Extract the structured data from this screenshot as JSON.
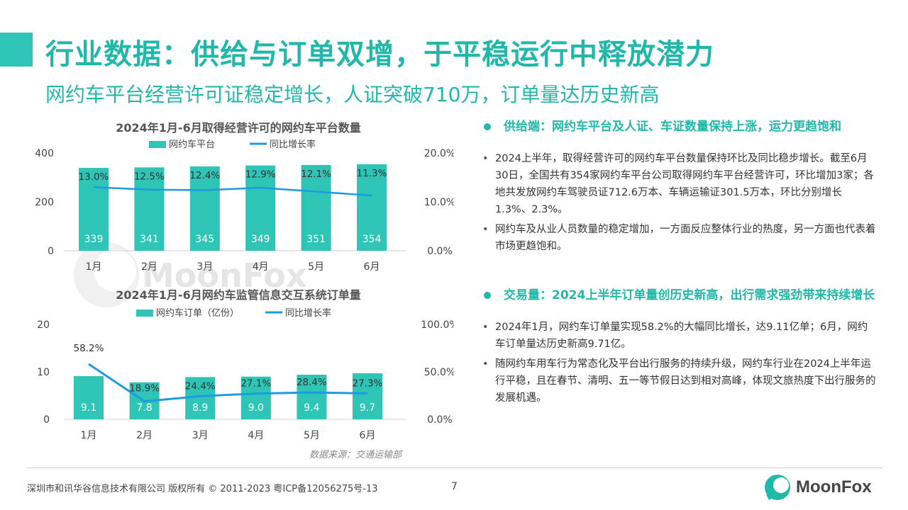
{
  "header": {
    "title": "行业数据：供给与订单双增，于平稳运行中释放潜力",
    "subtitle": "网约车平台经营许可证稳定增长，人证突破710万，订单量达历史新高"
  },
  "colors": {
    "teal": "#2ec4b6",
    "teal_dark": "#21b8aa",
    "line_blue": "#1e9be0"
  },
  "watermark": "MoonFox",
  "chart_data": [
    {
      "type": "bar",
      "title": "2024年1月-6月取得经营许可的网约车平台数量",
      "categories": [
        "1月",
        "2月",
        "3月",
        "4月",
        "5月",
        "6月"
      ],
      "series": [
        {
          "name": "网约车平台",
          "type": "bar",
          "axis": "left",
          "values": [
            339,
            341,
            345,
            349,
            351,
            354
          ],
          "labels": [
            "339",
            "341",
            "345",
            "349",
            "351",
            "354"
          ]
        },
        {
          "name": "同比增长率",
          "type": "line",
          "axis": "right",
          "values": [
            13.0,
            12.5,
            12.4,
            12.9,
            12.1,
            11.3
          ],
          "labels": [
            "13.0%",
            "12.5%",
            "12.4%",
            "12.9%",
            "12.1%",
            "11.3%"
          ]
        }
      ],
      "ylim": [
        0,
        400
      ],
      "y2lim": [
        0,
        20
      ],
      "yticks": [
        "0",
        "200",
        "400"
      ],
      "y2ticks": [
        "0.0%",
        "10.0%",
        "20.0%"
      ],
      "legend": "top",
      "grid": false
    },
    {
      "type": "bar",
      "title": "2024年1月-6月网约车监管信息交互系统订单量",
      "categories": [
        "1月",
        "2月",
        "3月",
        "4月",
        "5月",
        "6月"
      ],
      "series": [
        {
          "name": "网约车订单（亿份）",
          "type": "bar",
          "axis": "left",
          "values": [
            9.1,
            7.8,
            8.9,
            9.0,
            9.4,
            9.7
          ],
          "labels": [
            "9.1",
            "7.8",
            "8.9",
            "9.0",
            "9.4",
            "9.7"
          ]
        },
        {
          "name": "同比增长率",
          "type": "line",
          "axis": "right",
          "values": [
            58.2,
            18.9,
            24.4,
            27.1,
            28.4,
            27.3
          ],
          "labels": [
            "58.2%",
            "18.9%",
            "24.4%",
            "27.1%",
            "28.4%",
            "27.3%"
          ]
        }
      ],
      "ylim": [
        0,
        20
      ],
      "y2lim": [
        0,
        100
      ],
      "yticks": [
        "0",
        "10",
        "20"
      ],
      "y2ticks": [
        "0.0%",
        "50.0%",
        "100.0%"
      ],
      "legend": "top",
      "grid": false
    }
  ],
  "source": "数据来源：交通运输部",
  "sections": [
    {
      "heading": "供给端：网约车平台及人证、车证数量保持上涨，运力更趋饱和",
      "bullets": [
        "2024上半年，取得经营许可的网约车平台数量保持环比及同比稳步增长。截至6月30日，全国共有354家网约车平台公司取得网约车平台经营许可，环比增加3家；各地共发放网约车驾驶员证712.6万本、车辆运输证301.5万本，环比分别增长1.3%、2.3%。",
        "网约车及从业人员数量的稳定增加，一方面反应整体行业的热度，另一方面也代表着市场更趋饱和。"
      ]
    },
    {
      "heading": "交易量：2024上半年订单量创历史新高，出行需求强劲带来持续增长",
      "bullets": [
        "2024年1月，网约车订单量实现58.2%的大幅同比增长，达9.11亿单；6月，网约车订单量达历史新高9.71亿。",
        "随网约车用车行为常态化及平台出行服务的持续升级，网约车行业在2024上半年运行平稳，且在春节、清明、五一等节假日达到相对高峰，体现文旅热度下出行服务的发展机遇。"
      ]
    }
  ],
  "footer": {
    "copyright": "深圳市和讯华谷信息技术有限公司 版权所有 © 2011-2023 粤ICP备12056275号-13",
    "page": "7",
    "logo": "MoonFox"
  }
}
